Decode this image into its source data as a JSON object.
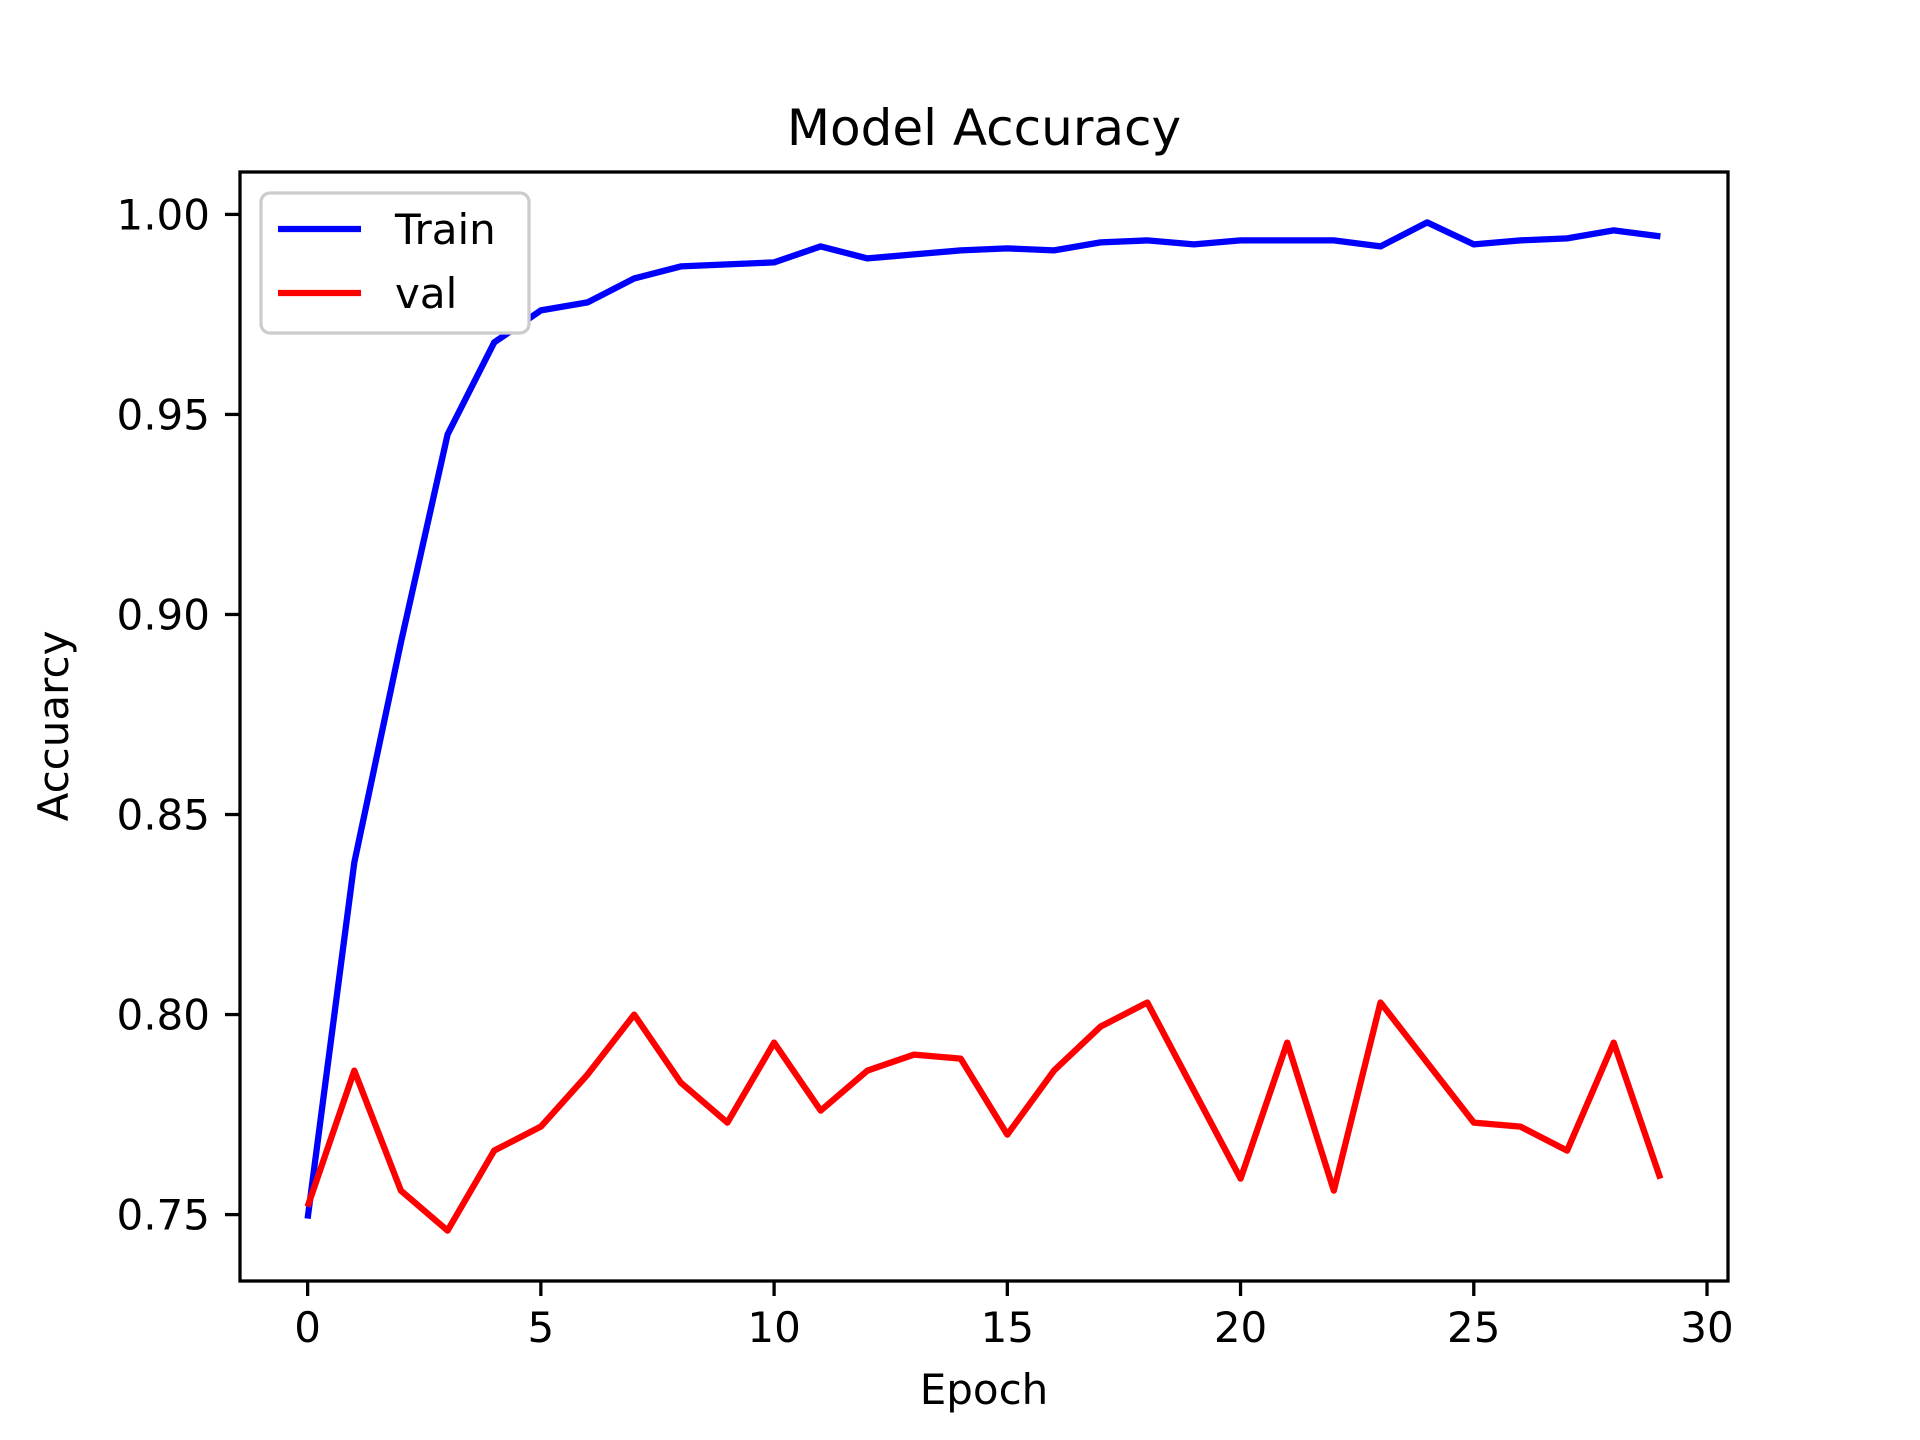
{
  "chart_data": {
    "type": "line",
    "title": "Model Accuracy",
    "xlabel": "Epoch",
    "ylabel": "Accuarcy",
    "x": [
      0,
      1,
      2,
      3,
      4,
      5,
      6,
      7,
      8,
      9,
      10,
      11,
      12,
      13,
      14,
      15,
      16,
      17,
      18,
      19,
      20,
      21,
      22,
      23,
      24,
      25,
      26,
      27,
      28,
      29
    ],
    "series": [
      {
        "name": "Train",
        "color": "#0000ff",
        "values": [
          0.749,
          0.838,
          0.893,
          0.945,
          0.968,
          0.976,
          0.978,
          0.984,
          0.987,
          0.9875,
          0.988,
          0.992,
          0.989,
          0.99,
          0.991,
          0.9915,
          0.991,
          0.993,
          0.9935,
          0.9925,
          0.9935,
          0.9935,
          0.9935,
          0.992,
          0.998,
          0.9925,
          0.9935,
          0.994,
          0.996,
          0.9945
        ]
      },
      {
        "name": "val",
        "color": "#ff0000",
        "values": [
          0.752,
          0.786,
          0.756,
          0.746,
          0.766,
          0.772,
          0.785,
          0.8,
          0.783,
          0.773,
          0.793,
          0.776,
          0.786,
          0.79,
          0.789,
          0.77,
          0.786,
          0.797,
          0.803,
          0.781,
          0.759,
          0.793,
          0.756,
          0.803,
          0.788,
          0.773,
          0.772,
          0.766,
          0.793,
          0.759
        ]
      }
    ],
    "xlim": [
      -1.45,
      30.45
    ],
    "ylim": [
      0.7334,
      1.0106
    ],
    "xticks": [
      0,
      5,
      10,
      15,
      20,
      25,
      30
    ],
    "yticks": [
      0.75,
      0.8,
      0.85,
      0.9,
      0.95,
      1.0
    ],
    "grid": false,
    "legend_position": "upper left",
    "legend_entries": [
      "Train",
      "val"
    ]
  },
  "colors": {
    "background": "#ffffff",
    "axes": "#000000",
    "train_line": "#0000ff",
    "val_line": "#ff0000",
    "legend_border": "#cccccc"
  }
}
